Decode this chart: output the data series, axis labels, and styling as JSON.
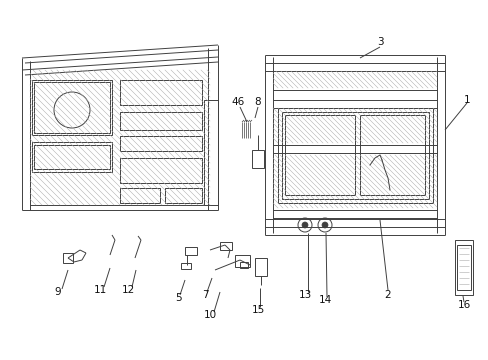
{
  "bg_color": "#ffffff",
  "lc": "#404040",
  "hatch_color": "#aaaaaa",
  "figsize": [
    4.89,
    3.6
  ],
  "dpi": 100,
  "lw": 0.7,
  "hatch_lw": 0.35
}
